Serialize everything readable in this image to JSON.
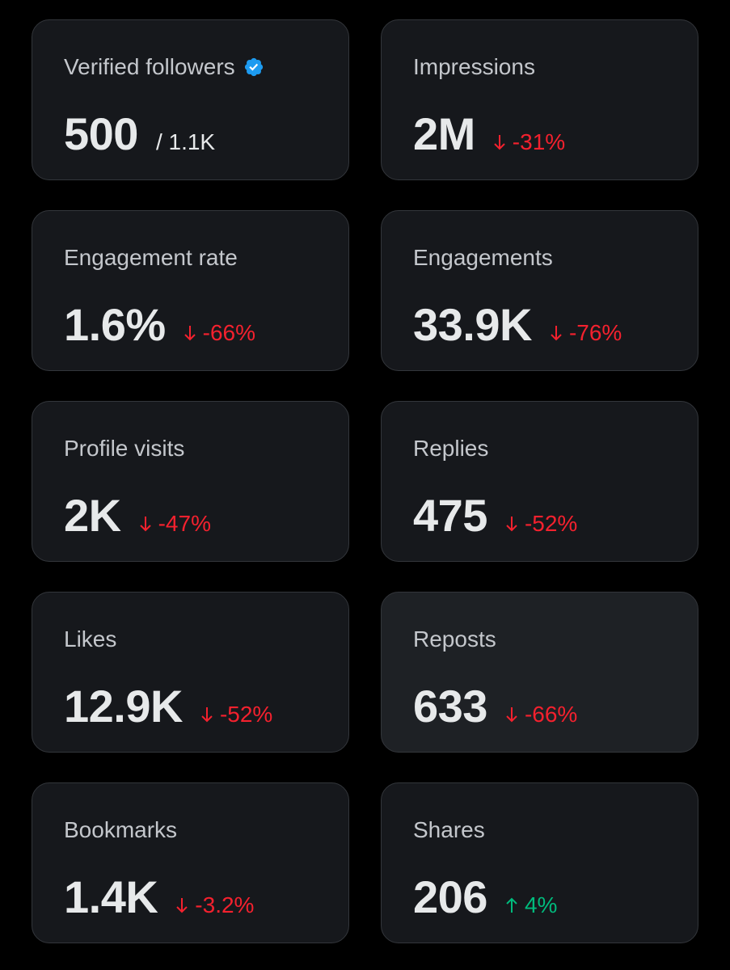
{
  "colors": {
    "background": "#000000",
    "card": "#16181c",
    "card_highlight": "#1e2125",
    "border": "#33363b",
    "text_primary": "#e7e9ea",
    "text_secondary": "#c4c7cc",
    "negative": "#f4212e",
    "positive": "#00ba7c",
    "verified_badge": "#1d9bf0"
  },
  "cards": [
    {
      "label": "Verified followers",
      "icon": "verified-badge-icon",
      "value": "500",
      "sub": "/ 1.1K"
    },
    {
      "label": "Impressions",
      "value": "2M",
      "delta": "-31%",
      "direction": "down"
    },
    {
      "label": "Engagement rate",
      "value": "1.6%",
      "delta": "-66%",
      "direction": "down"
    },
    {
      "label": "Engagements",
      "value": "33.9K",
      "delta": "-76%",
      "direction": "down"
    },
    {
      "label": "Profile visits",
      "value": "2K",
      "delta": "-47%",
      "direction": "down"
    },
    {
      "label": "Replies",
      "value": "475",
      "delta": "-52%",
      "direction": "down"
    },
    {
      "label": "Likes",
      "value": "12.9K",
      "delta": "-52%",
      "direction": "down"
    },
    {
      "label": "Reposts",
      "value": "633",
      "delta": "-66%",
      "direction": "down"
    },
    {
      "label": "Bookmarks",
      "value": "1.4K",
      "delta": "-3.2%",
      "direction": "down"
    },
    {
      "label": "Shares",
      "value": "206",
      "delta": "4%",
      "direction": "up"
    }
  ]
}
